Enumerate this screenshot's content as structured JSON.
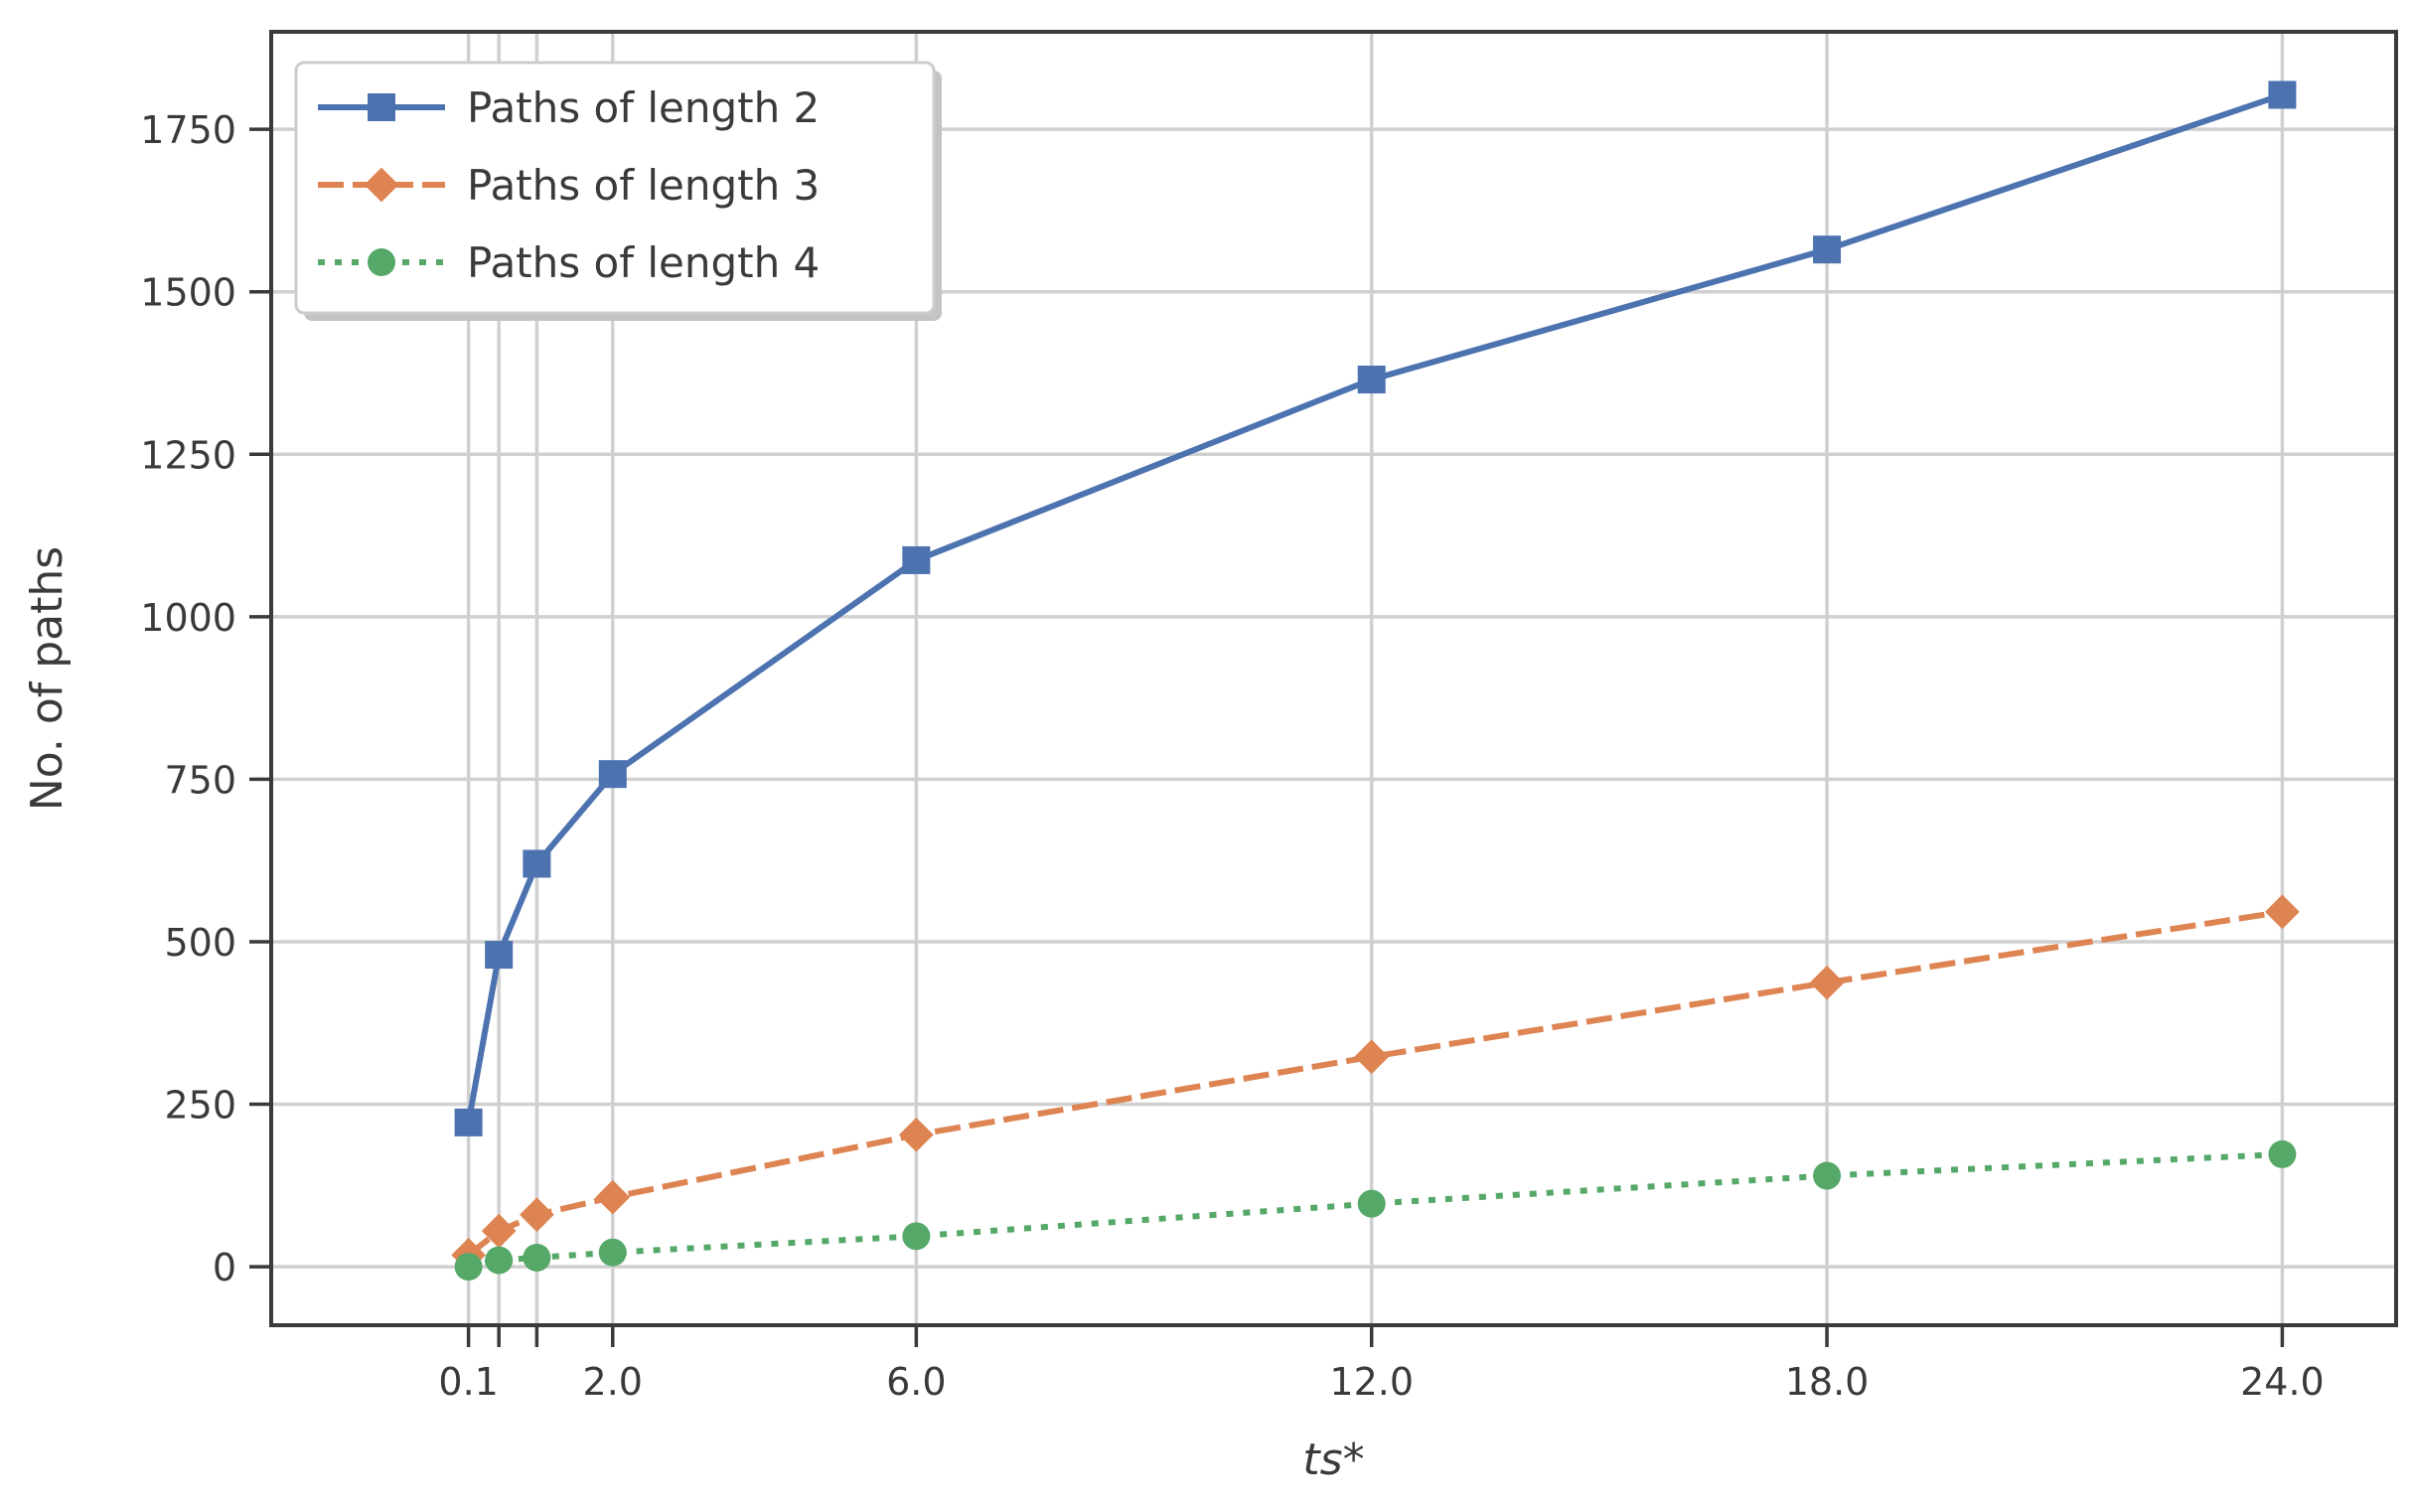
{
  "chart_data": {
    "type": "line",
    "xlabel": "ts*",
    "ylabel": "No. of paths",
    "xlim": [
      -2.5,
      25.5
    ],
    "ylim": [
      -90,
      1900
    ],
    "grid": true,
    "legend_position": "top-left",
    "x": [
      0.1,
      0.5,
      1.0,
      2.0,
      6.0,
      12.0,
      18.0,
      24.0
    ],
    "x_ticks": [
      0.1,
      0.5,
      1.0,
      2.0,
      6.0,
      12.0,
      18.0,
      24.0
    ],
    "x_tick_labels": [
      "0.1",
      "",
      "",
      "2.0",
      "6.0",
      "12.0",
      "18.0",
      "24.0"
    ],
    "y_ticks": [
      0,
      250,
      500,
      750,
      1000,
      1250,
      1500,
      1750
    ],
    "y_tick_labels": [
      "0",
      "250",
      "500",
      "750",
      "1000",
      "1250",
      "1500",
      "1750"
    ],
    "series": [
      {
        "name": "Paths of length 2",
        "values": [
          222,
          480,
          620,
          758,
          1087,
          1365,
          1565,
          1803
        ],
        "color": "#4c72b0",
        "line_style": "solid",
        "marker": "square"
      },
      {
        "name": "Paths of length 3",
        "values": [
          18,
          55,
          80,
          107,
          203,
          323,
          437,
          546
        ],
        "color": "#dd8452",
        "line_style": "dashed",
        "marker": "diamond"
      },
      {
        "name": "Paths of length 4",
        "values": [
          0,
          10,
          14,
          22,
          47,
          97,
          140,
          173
        ],
        "color": "#55a868",
        "line_style": "dotted",
        "marker": "circle"
      }
    ]
  }
}
